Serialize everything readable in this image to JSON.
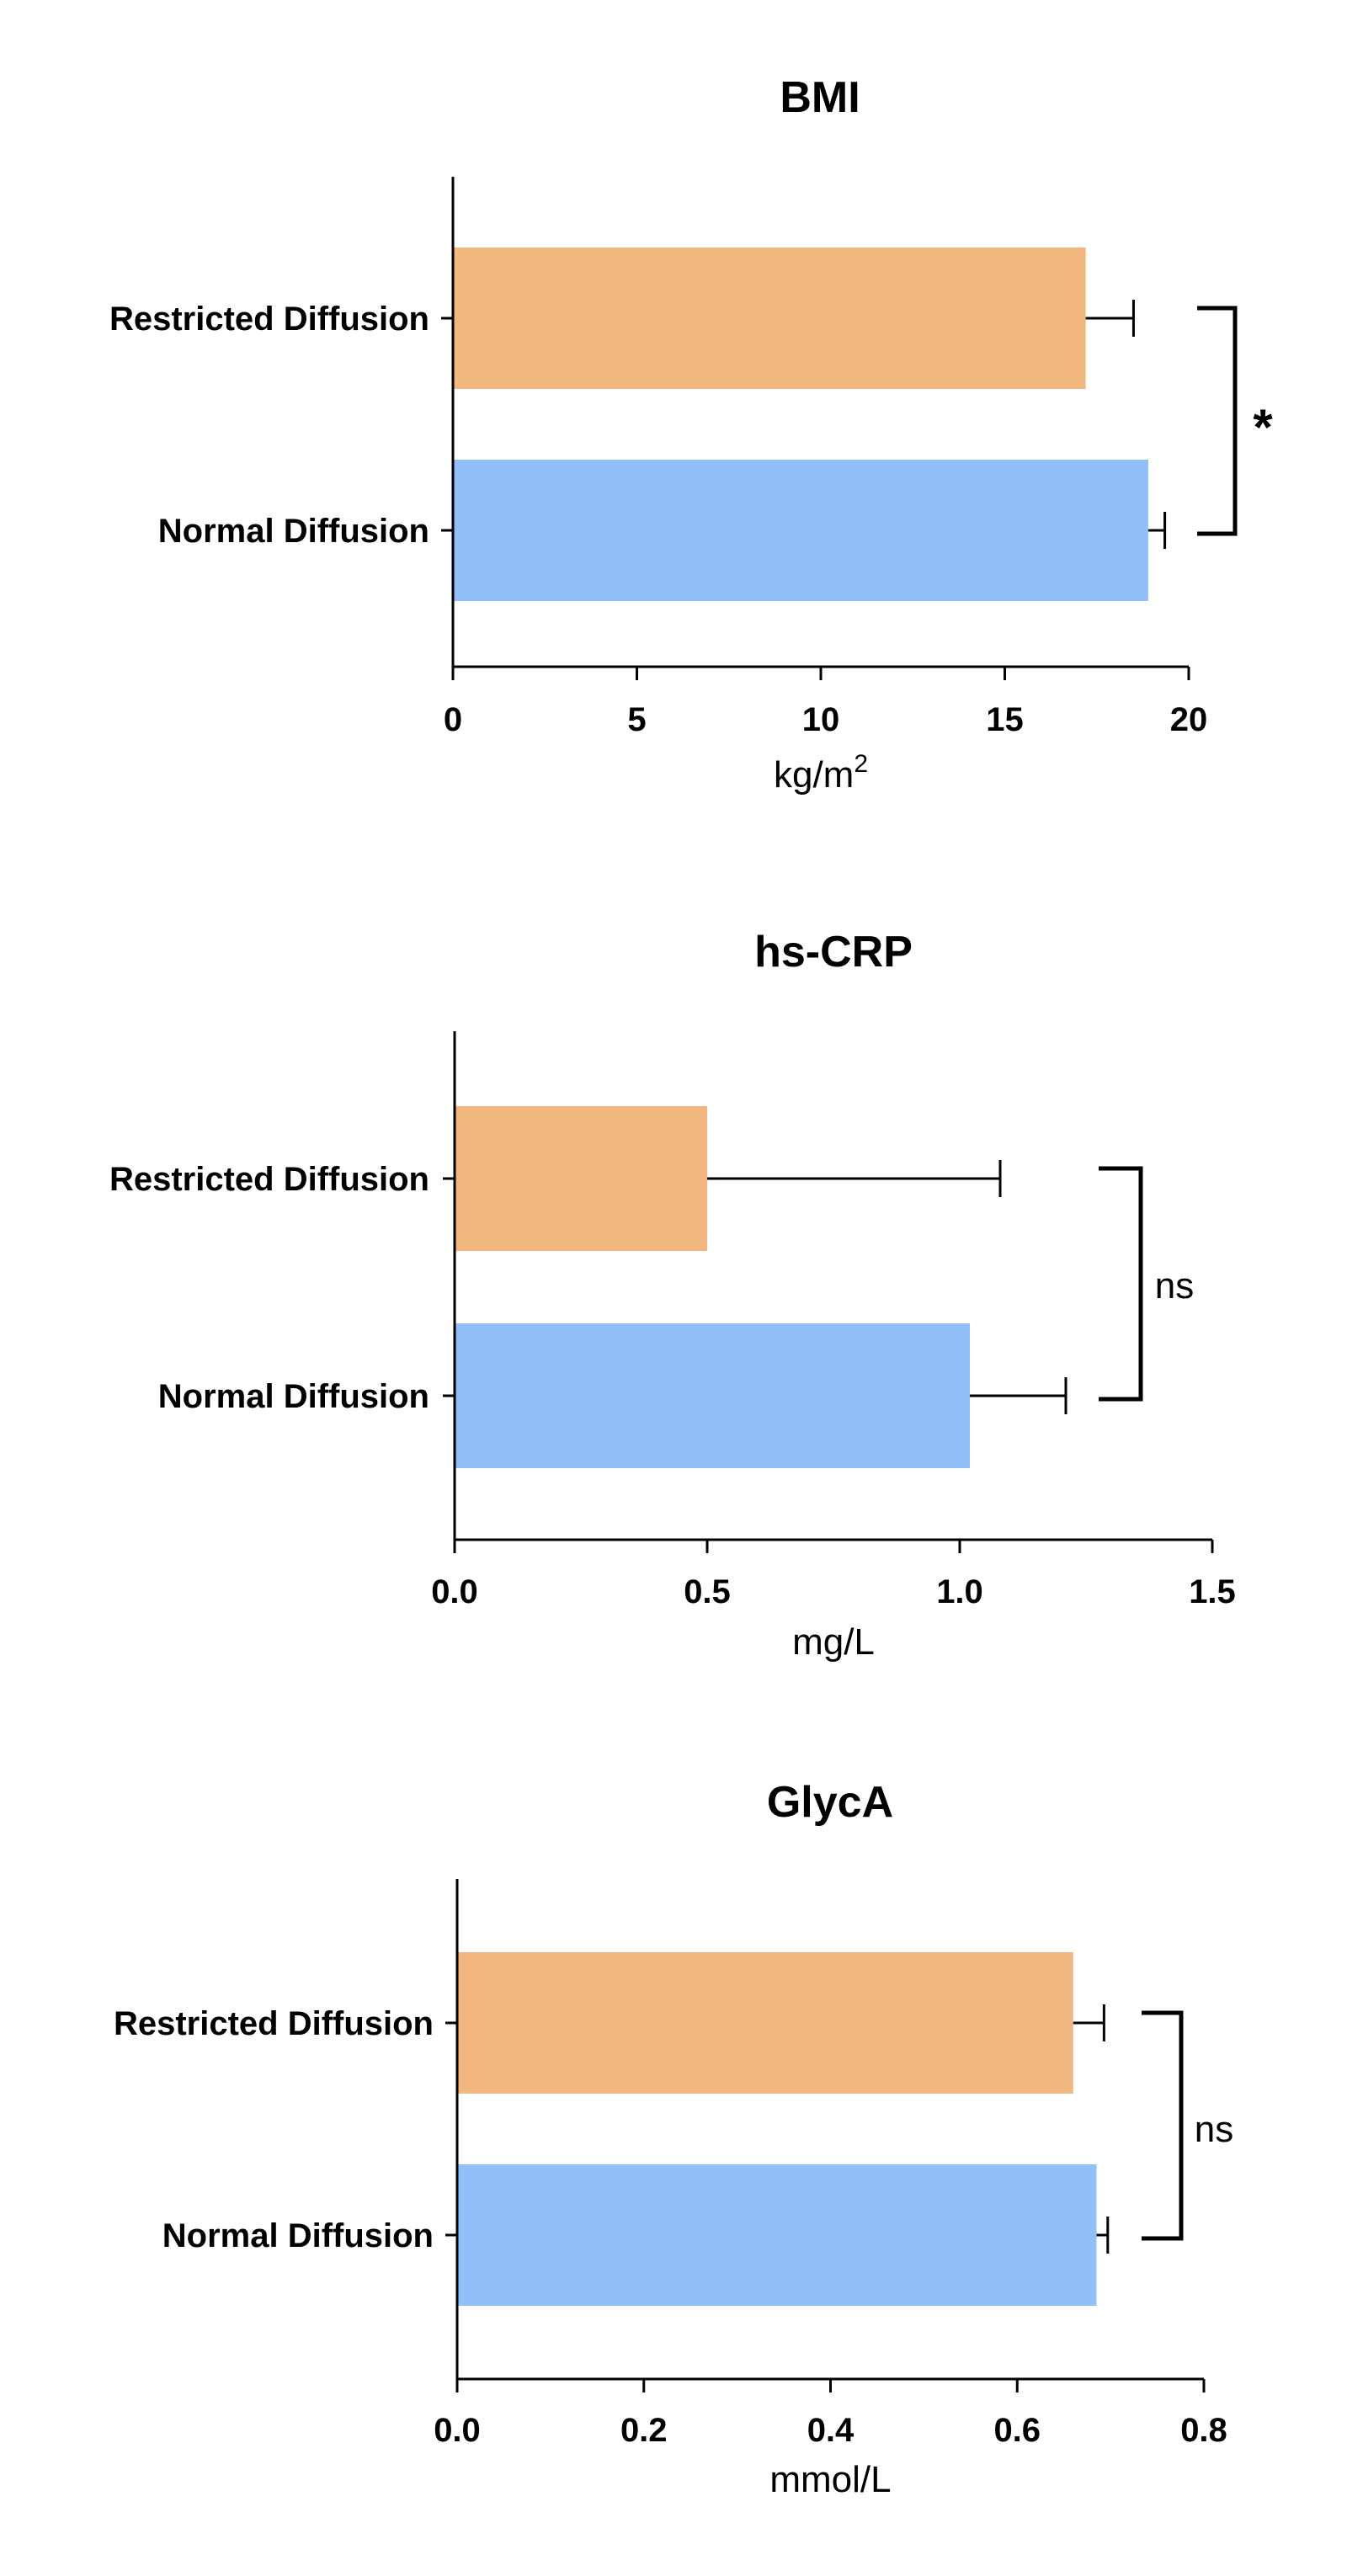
{
  "chart_data": [
    {
      "type": "bar",
      "orientation": "horizontal",
      "title": "BMI",
      "xlabel": "kg/m",
      "xlabel_superscript": "2",
      "xlim": [
        0,
        20
      ],
      "xticks": [
        0,
        5,
        10,
        15,
        20
      ],
      "tick_labels": [
        "0",
        "5",
        "10",
        "15",
        "20"
      ],
      "categories": [
        "Restricted Diffusion",
        "Normal Diffusion"
      ],
      "values": [
        17.2,
        18.9
      ],
      "errors": [
        1.3,
        0.45
      ],
      "colors": [
        "#F2B77F",
        "#92BFF8"
      ],
      "significance": "*"
    },
    {
      "type": "bar",
      "orientation": "horizontal",
      "title": "hs-CRP",
      "xlabel": "mg/L",
      "xlim": [
        0,
        1.5
      ],
      "xticks": [
        0,
        0.5,
        1.0,
        1.5
      ],
      "tick_labels": [
        "0.0",
        "0.5",
        "1.0",
        "1.5"
      ],
      "categories": [
        "Restricted Diffusion",
        "Normal Diffusion"
      ],
      "values": [
        0.5,
        1.02
      ],
      "errors": [
        0.58,
        0.19
      ],
      "colors": [
        "#F2B77F",
        "#92BFF8"
      ],
      "significance": "ns"
    },
    {
      "type": "bar",
      "orientation": "horizontal",
      "title": "GlycA",
      "xlabel": "mmol/L",
      "xlim": [
        0,
        0.8
      ],
      "xticks": [
        0,
        0.2,
        0.4,
        0.6,
        0.8
      ],
      "tick_labels": [
        "0.0",
        "0.2",
        "0.4",
        "0.6",
        "0.8"
      ],
      "categories": [
        "Restricted Diffusion",
        "Normal Diffusion"
      ],
      "values": [
        0.66,
        0.685
      ],
      "errors": [
        0.033,
        0.012
      ],
      "colors": [
        "#F2B77F",
        "#92BFF8"
      ],
      "significance": "ns"
    }
  ]
}
